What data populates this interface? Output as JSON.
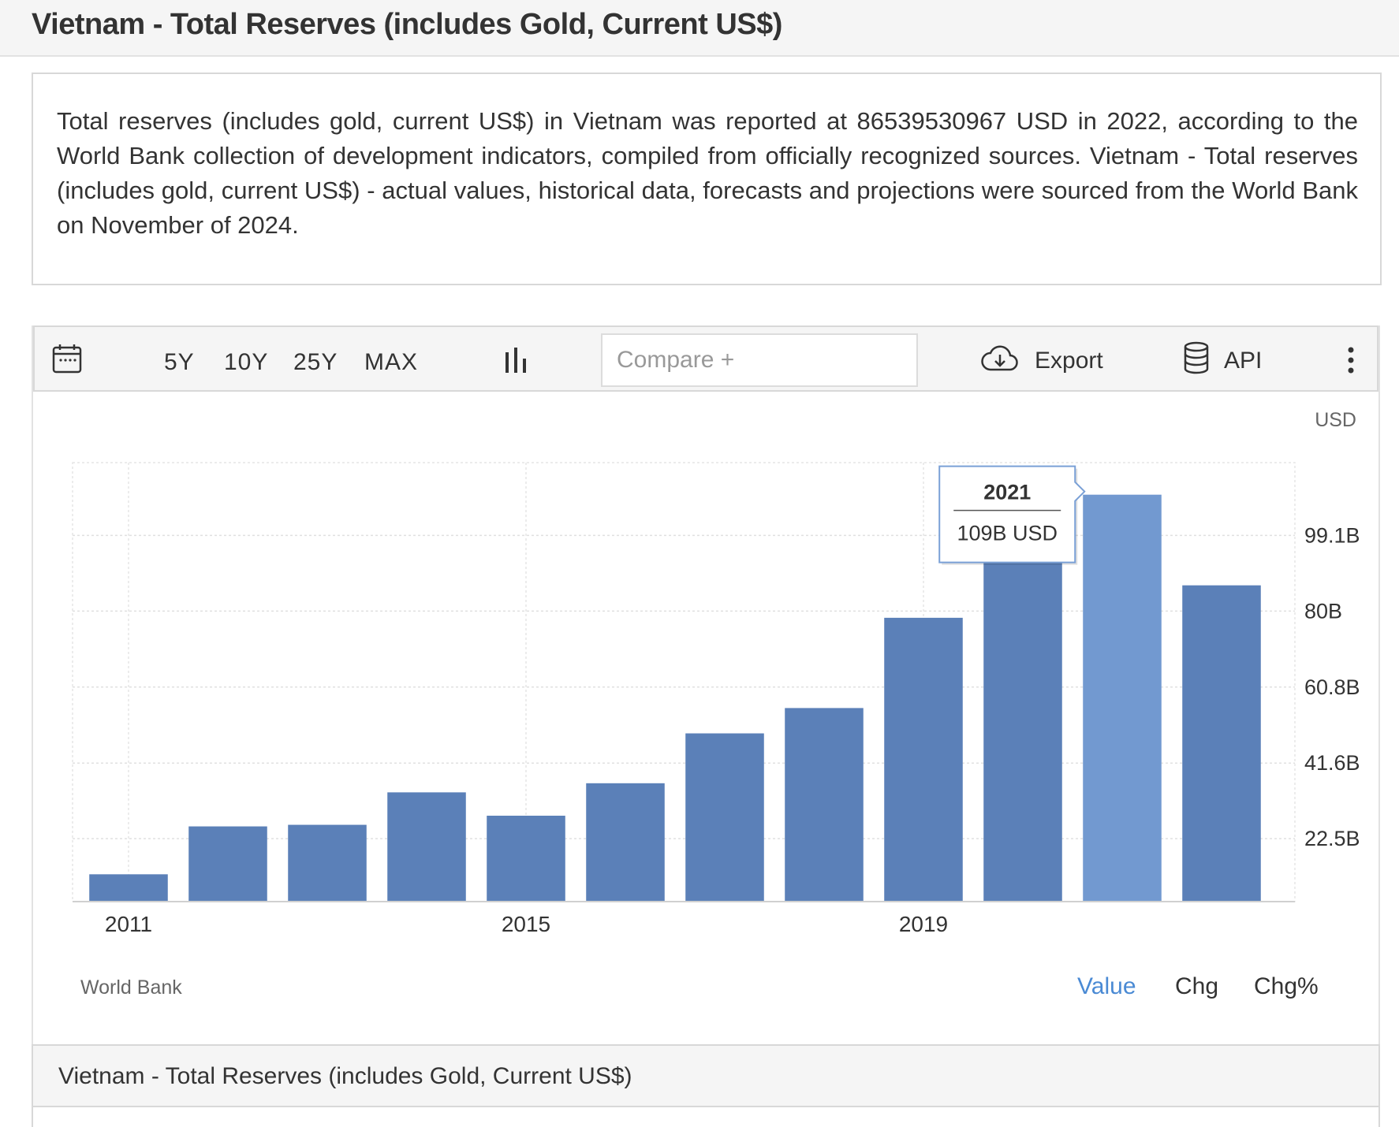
{
  "header": {
    "title": "Vietnam - Total Reserves (includes Gold, Current US$)"
  },
  "description": "Total reserves (includes gold, current US$) in Vietnam was reported at 86539530967 USD in 2022, according to the World Bank collection of development indicators, compiled from officially recognized sources. Vietnam - Total reserves (includes gold, current US$) - actual values, historical data, forecasts and projections were sourced from the World Bank on November of 2024.",
  "toolbar": {
    "ranges": [
      "5Y",
      "10Y",
      "25Y",
      "MAX"
    ],
    "compare_placeholder": "Compare +",
    "export_label": "Export",
    "api_label": "API",
    "icons": {
      "calendar": "calendar-icon",
      "chart_type": "bar-chart-icon",
      "export": "cloud-download-icon",
      "api": "database-icon",
      "more": "more-vertical-icon"
    }
  },
  "chart_data": {
    "type": "bar",
    "unit": "USD",
    "categories": [
      "2011",
      "2012",
      "2013",
      "2014",
      "2015",
      "2016",
      "2017",
      "2018",
      "2019",
      "2020",
      "2021",
      "2022"
    ],
    "values": [
      13.5,
      25.6,
      26.0,
      34.2,
      28.3,
      36.5,
      49.1,
      55.5,
      78.3,
      95.0,
      109.4,
      86.5
    ],
    "value_units": "billion USD",
    "x_tick_labels": [
      "2011",
      "2015",
      "2019"
    ],
    "y_ticks": [
      22.5,
      41.6,
      60.8,
      80.0,
      99.1
    ],
    "y_tick_labels": [
      "22.5B",
      "41.6B",
      "60.8B",
      "80B",
      "99.1B"
    ],
    "ylim": [
      6.6,
      117.5
    ],
    "grid": true,
    "highlighted_index": 10,
    "bar_color": "#5b80b8",
    "highlight_color": "#7299d0",
    "tooltip": {
      "year": "2021",
      "value": "109B USD"
    }
  },
  "source": "World Bank",
  "modes": {
    "value": "Value",
    "chg": "Chg",
    "chg_pct": "Chg%",
    "active": "value"
  },
  "table": {
    "title": "Vietnam - Total Reserves (includes Gold, Current US$)"
  }
}
